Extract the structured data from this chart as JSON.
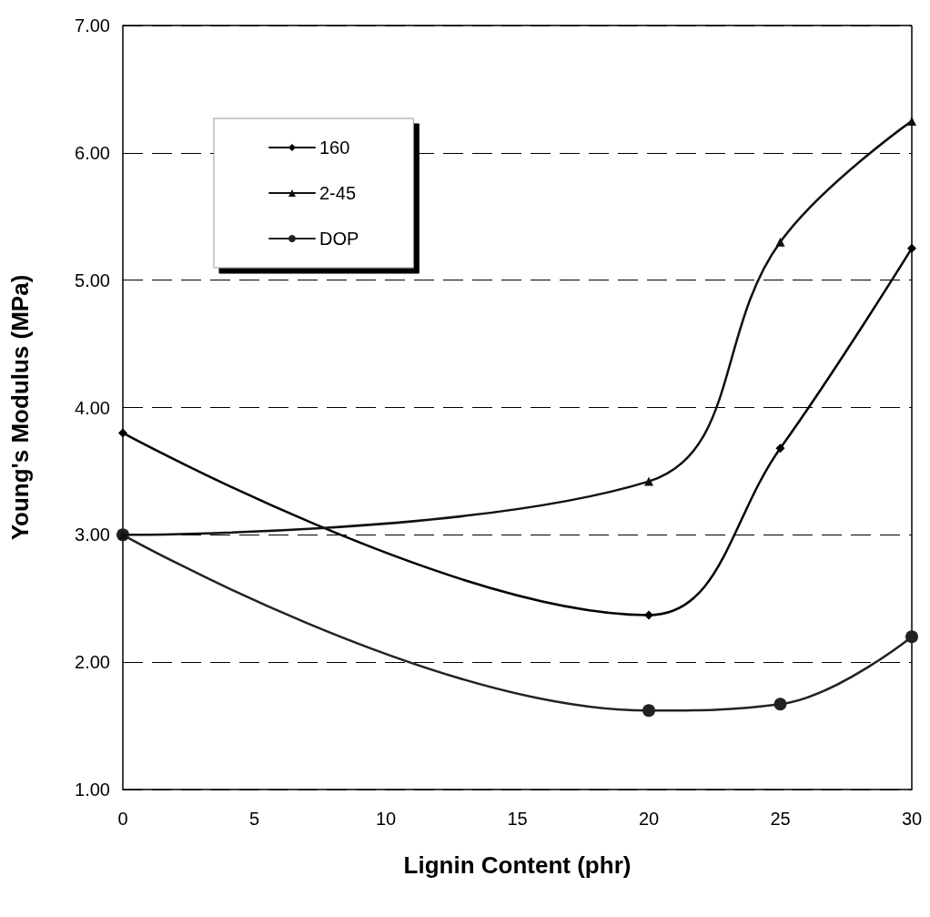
{
  "chart_data": {
    "type": "line",
    "xlabel": "Lignin Content (phr)",
    "ylabel": "Young's Modulus (MPa)",
    "x": [
      0,
      20,
      25,
      30
    ],
    "series": [
      {
        "name": "160",
        "color": "#000000",
        "marker": "diamond",
        "values": [
          3.8,
          2.37,
          3.68,
          5.25
        ]
      },
      {
        "name": "2-45",
        "color": "#111111",
        "marker": "triangle",
        "values": [
          3.0,
          3.42,
          5.3,
          6.25
        ]
      },
      {
        "name": "DOP",
        "color": "#222222",
        "marker": "circle",
        "values": [
          3.0,
          1.62,
          1.67,
          2.2
        ]
      }
    ],
    "xlim": [
      0,
      30
    ],
    "xticks": [
      0,
      5,
      10,
      15,
      20,
      25,
      30
    ],
    "ylim": [
      1,
      7
    ],
    "yticks": [
      {
        "value": 1,
        "label": "1.00"
      },
      {
        "value": 2,
        "label": "2.00"
      },
      {
        "value": 3,
        "label": "3.00"
      },
      {
        "value": 4,
        "label": "4.00"
      },
      {
        "value": 5,
        "label": "5.00"
      },
      {
        "value": 6,
        "label": "6.00"
      },
      {
        "value": 7,
        "label": "7.00"
      }
    ],
    "grid": "y",
    "line_style": "solid",
    "legend": "top left"
  }
}
